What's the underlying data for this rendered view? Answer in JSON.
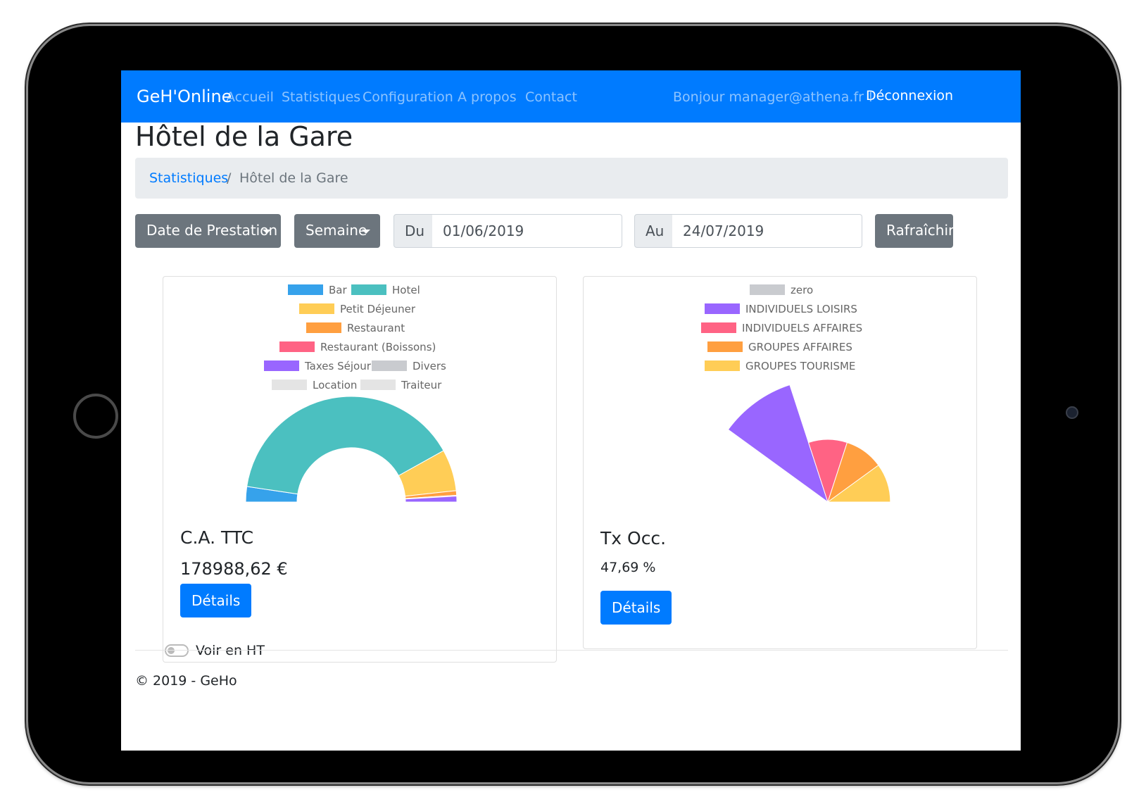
{
  "navbar": {
    "brand": "GeH'Online",
    "links": [
      "Accueil",
      "Statistiques",
      "Configuration",
      "A propos",
      "Contact"
    ],
    "greeting": "Bonjour manager@athena.fr !",
    "logout": "Déconnexion"
  },
  "page": {
    "title": "Hôtel de la Gare"
  },
  "breadcrumb": {
    "parent": "Statistiques",
    "separator": "/",
    "current": "Hôtel de la Gare"
  },
  "filters": {
    "date_type": "Date de Prestation",
    "period": "Semaine",
    "from_label": "Du",
    "from_value": "01/06/2019",
    "to_label": "Au",
    "to_value": "24/07/2019",
    "refresh": "Rafraîchir"
  },
  "cards": {
    "revenue": {
      "title": "C.A. TTC",
      "value": "178988,62 €",
      "details": "Détails",
      "toggle_label": "Voir en HT",
      "toggle_on": false
    },
    "occupancy": {
      "title": "Tx Occ.",
      "value": "47,69 %",
      "details": "Détails"
    }
  },
  "footer": {
    "text": "© 2019 - GeHo"
  },
  "colors": {
    "primary": "#007bff",
    "secondary": "#6c757d",
    "blue": "#36a2eb",
    "teal": "#4bc0c0",
    "yellow": "#ffcd56",
    "orange": "#ff9f40",
    "red": "#ff6384",
    "purple": "#9966ff",
    "grey": "#c9cbcf",
    "light_grey": "#e4e4e4"
  },
  "chart_data": [
    {
      "type": "pie",
      "variant": "half-doughnut",
      "labels": [
        "Bar",
        "Hotel",
        "Petit Déjeuner",
        "Restaurant",
        "Restaurant (Boissons)",
        "Taxes Séjour",
        "Divers",
        "Location",
        "Traiteur"
      ],
      "values": [
        8.5,
        143,
        23,
        2.5,
        0.5,
        3.2,
        0,
        0,
        0
      ],
      "colors": [
        "#36a2eb",
        "#4bc0c0",
        "#ffcd56",
        "#ff9f40",
        "#ff6384",
        "#9966ff",
        "#c9cbcf",
        "#e4e4e4",
        "#e4e4e4"
      ],
      "legend": "top"
    },
    {
      "type": "pie",
      "variant": "half-polar-area",
      "labels": [
        "zero",
        "INDIVIDUELS LOISIRS",
        "INDIVIDUELS AFFAIRES",
        "GROUPES AFFAIRES",
        "GROUPES TOURISME"
      ],
      "values": [
        0,
        100,
        1,
        1,
        1
      ],
      "colors": [
        "#c9cbcf",
        "#9966ff",
        "#ff6384",
        "#ff9f40",
        "#ffcd56"
      ],
      "legend": "top"
    }
  ]
}
